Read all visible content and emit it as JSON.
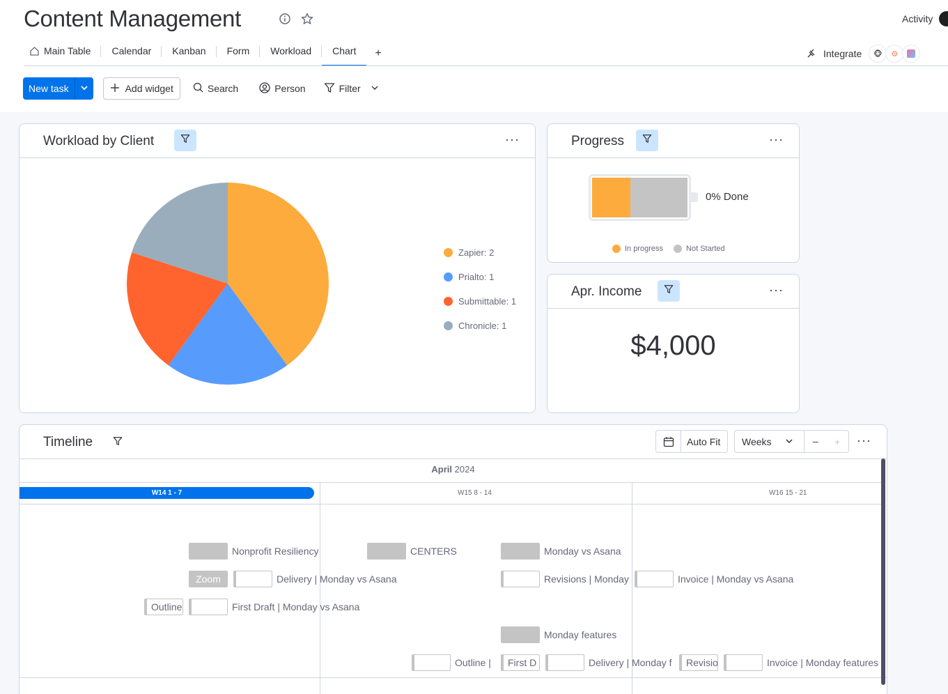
{
  "header": {
    "title": "Content Management",
    "activity": "Activity",
    "integrate": "Integrate"
  },
  "tabs": [
    {
      "label": "Main Table",
      "icon": "home-icon"
    },
    {
      "label": "Calendar"
    },
    {
      "label": "Kanban"
    },
    {
      "label": "Form"
    },
    {
      "label": "Workload"
    },
    {
      "label": "Chart",
      "active": true
    }
  ],
  "tab_add": "+",
  "toolbar": {
    "new_task": "New task",
    "add_widget": "Add widget",
    "search": "Search",
    "person": "Person",
    "filter": "Filter"
  },
  "workload": {
    "title": "Workload by Client",
    "chart_data": {
      "type": "pie",
      "categories": [
        "Zapier",
        "Prialto",
        "Submittable",
        "Chronicle"
      ],
      "values": [
        2,
        1,
        1,
        1
      ],
      "colors": [
        "#fdab3d",
        "#579bfc",
        "#ff642e",
        "#9aadbd"
      ],
      "legend": [
        "Zapier: 2",
        "Prialto: 1",
        "Submittable: 1",
        "Chronicle: 1"
      ],
      "legend_position": "right"
    }
  },
  "progress": {
    "title": "Progress",
    "done_text": "0% Done",
    "segments": [
      {
        "label": "In progress",
        "color": "#fdab3d",
        "fraction": 0.4
      },
      {
        "label": "Not Started",
        "color": "#c4c4c4",
        "fraction": 0.6
      }
    ]
  },
  "income": {
    "title": "Apr. Income",
    "value": "$4,000"
  },
  "timeline": {
    "title": "Timeline",
    "auto_fit": "Auto Fit",
    "scale": "Weeks",
    "minus": "–",
    "plus": "+",
    "month_bold": "April",
    "month_year": " 2024",
    "weeks": [
      "W14 1 - 7",
      "W15 8 - 14",
      "W16 15 - 21"
    ],
    "bar_texts": {
      "zoom": "Zoom",
      "outline_a": "Outline",
      "first_d": "First D",
      "revisions": "Revisions"
    },
    "labels": {
      "nonprofit": "Nonprofit Resiliency",
      "centers": "CENTERS",
      "monday_vs_asana": "Monday vs Asana",
      "delivery": "Delivery | Monday vs Asana",
      "revisions": "Revisions | Monday",
      "invoice": "Invoice | Monday vs Asana",
      "first_draft": "First Draft | Monday vs Asana",
      "monday_features": "Monday features",
      "outline": "Outline |",
      "delivery_f": "Delivery | Monday f",
      "invoice_f": "Invoice | Monday features"
    }
  }
}
